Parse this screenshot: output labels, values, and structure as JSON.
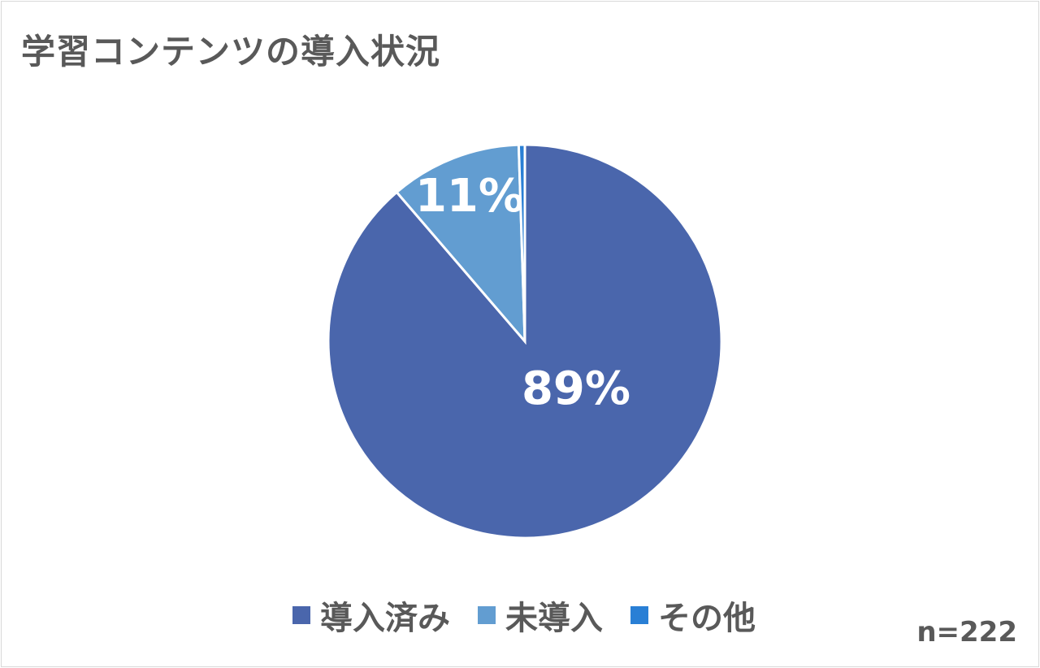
{
  "chart_data": {
    "type": "pie",
    "title": "学習コンテンツの導入状況",
    "categories": [
      "導入済み",
      "未導入",
      "その他"
    ],
    "values": [
      88.7,
      10.8,
      0.5
    ],
    "data_labels": [
      "89%",
      "11%",
      ""
    ],
    "colors": [
      "#4A66AC",
      "#629DD1",
      "#297FD5"
    ],
    "legend_position": "bottom",
    "note": "n=222"
  }
}
